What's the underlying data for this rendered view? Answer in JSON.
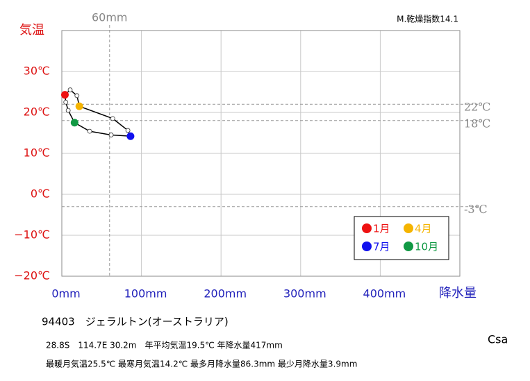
{
  "chart_data": {
    "type": "line",
    "title": "M.乾燥指数14.1",
    "y_label": "気温",
    "x_label": "降水量",
    "xlim": [
      0,
      500
    ],
    "ylim": [
      -20,
      40
    ],
    "xticks": [
      {
        "value": 0,
        "label": "0mm"
      },
      {
        "value": 100,
        "label": "100mm"
      },
      {
        "value": 200,
        "label": "200mm"
      },
      {
        "value": 300,
        "label": "300mm"
      },
      {
        "value": 400,
        "label": "400mm"
      }
    ],
    "yticks": [
      {
        "value": -20,
        "label": "−20℃"
      },
      {
        "value": -10,
        "label": "−10℃"
      },
      {
        "value": 0,
        "label": "0℃"
      },
      {
        "value": 10,
        "label": "10℃"
      },
      {
        "value": 20,
        "label": "20℃"
      },
      {
        "value": 30,
        "label": "30℃"
      }
    ],
    "grid": true,
    "series": [
      {
        "color": "#000000",
        "x": [
          3.9,
          10.5,
          19,
          22,
          64,
          83,
          86.3,
          62,
          35,
          16,
          8,
          5
        ],
        "values": [
          24.3,
          25.5,
          24.1,
          21.5,
          18.5,
          15.6,
          14.2,
          14.5,
          15.4,
          17.5,
          20.5,
          22.5
        ],
        "point_colors": [
          "#ee1111",
          "#ffffff",
          "#ffffff",
          "#f5b400",
          "#ffffff",
          "#ffffff",
          "#1111ee",
          "#ffffff",
          "#ffffff",
          "#119944",
          "#ffffff",
          "#ffffff"
        ]
      }
    ],
    "legend": [
      {
        "name": "1月",
        "color": "#ee1111"
      },
      {
        "name": "4月",
        "color": "#f5b400"
      },
      {
        "name": "7月",
        "color": "#1111ee"
      },
      {
        "name": "10月",
        "color": "#119944"
      }
    ],
    "hlines": [
      {
        "value": 22,
        "label": "22℃"
      },
      {
        "value": 18,
        "label": "18℃"
      },
      {
        "value": -3,
        "label": "-3℃"
      }
    ],
    "vlines": [
      {
        "value": 60,
        "label": "60mm"
      }
    ]
  },
  "station": {
    "name": "94403　ジェラルトン(オーストラリア)",
    "line1": "28.8S　114.7E 30.2m　年平均気温19.5℃ 年降水量417mm",
    "line2": "最暖月気温25.5℃ 最寒月気温14.2℃ 最多月降水量86.3mm 最少月降水量3.9mm",
    "climate": "Csa"
  }
}
